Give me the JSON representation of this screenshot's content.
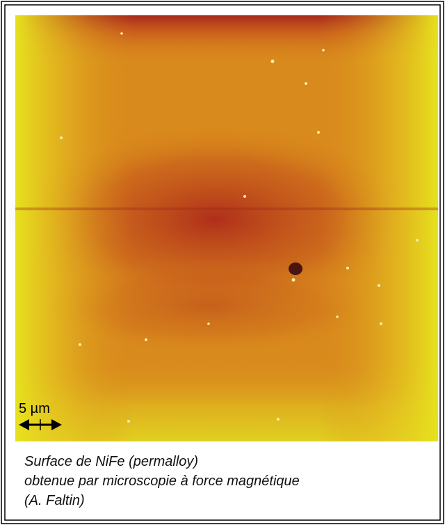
{
  "image": {
    "scale_bar": "5 µm"
  },
  "caption": [
    "Surface de NiFe (permalloy)",
    "obtenue par microscopie à force magnétique",
    "(A. Faltin)"
  ]
}
